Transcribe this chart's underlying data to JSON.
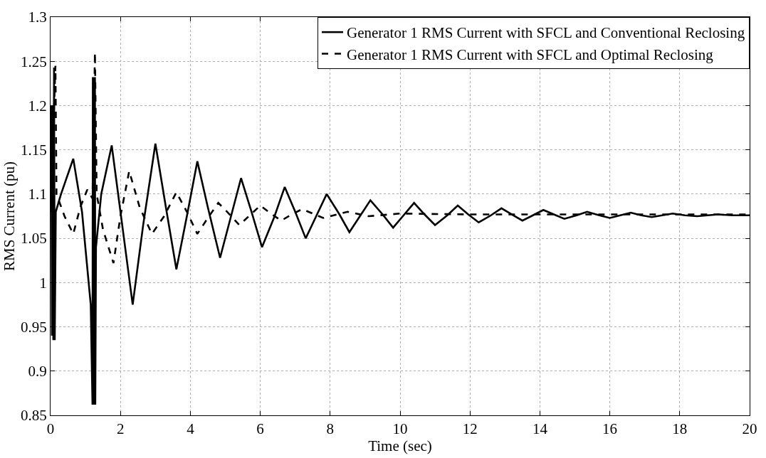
{
  "chart_data": {
    "type": "line",
    "xlabel": "Time (sec)",
    "ylabel": "RMS Current (pu)",
    "xlim": [
      0,
      20
    ],
    "ylim": [
      0.85,
      1.3
    ],
    "xticks": [
      0,
      2,
      4,
      6,
      8,
      10,
      12,
      14,
      16,
      18,
      20
    ],
    "yticks": [
      0.85,
      0.9,
      0.95,
      1,
      1.05,
      1.1,
      1.15,
      1.2,
      1.25,
      1.3
    ],
    "grid": true,
    "legend": "top right",
    "marker": "none",
    "series": [
      {
        "name": "Generator 1 RMS Current with SFCL and Conventional Reclosing",
        "color": "#000000",
        "line_style": "solid",
        "x": [
          0,
          0.02,
          0.04,
          0.06,
          0.08,
          0.1,
          0.12,
          0.15,
          0.3,
          0.65,
          0.9,
          1.15,
          1.2,
          1.21,
          1.22,
          1.23,
          1.24,
          1.25,
          1.26,
          1.27,
          1.28,
          1.3,
          1.45,
          1.75,
          2.05,
          2.35,
          2.65,
          3.0,
          3.3,
          3.6,
          3.9,
          4.2,
          4.5,
          4.85,
          5.15,
          5.45,
          5.75,
          6.05,
          6.4,
          6.7,
          7.0,
          7.3,
          7.6,
          7.9,
          8.25,
          8.55,
          8.85,
          9.15,
          9.5,
          9.8,
          10.1,
          10.4,
          10.7,
          11.0,
          11.35,
          11.65,
          11.95,
          12.25,
          12.6,
          12.9,
          13.2,
          13.5,
          13.8,
          14.1,
          14.4,
          14.7,
          15.05,
          15.35,
          15.7,
          16.0,
          16.3,
          16.6,
          16.9,
          17.2,
          17.5,
          17.8,
          18.15,
          18.5,
          18.8,
          19.1,
          19.5,
          20
        ],
        "values": [
          1.08,
          1.2,
          0.94,
          1.2,
          0.935,
          1.243,
          0.935,
          1.08,
          1.1,
          1.14,
          1.08,
          0.975,
          0.862,
          1.232,
          0.862,
          1.232,
          0.862,
          1.232,
          0.862,
          1.232,
          0.862,
          1.04,
          1.1,
          1.155,
          1.065,
          0.975,
          1.065,
          1.157,
          1.085,
          1.015,
          1.075,
          1.137,
          1.085,
          1.028,
          1.073,
          1.118,
          1.08,
          1.04,
          1.074,
          1.108,
          1.08,
          1.05,
          1.075,
          1.1,
          1.078,
          1.057,
          1.075,
          1.093,
          1.077,
          1.062,
          1.076,
          1.09,
          1.077,
          1.065,
          1.076,
          1.087,
          1.077,
          1.068,
          1.076,
          1.084,
          1.077,
          1.07,
          1.076,
          1.082,
          1.077,
          1.072,
          1.076,
          1.08,
          1.076,
          1.073,
          1.076,
          1.079,
          1.076,
          1.074,
          1.076,
          1.078,
          1.076,
          1.075,
          1.076,
          1.077,
          1.076,
          1.076
        ]
      },
      {
        "name": "Generator 1 RMS Current with SFCL and Optimal Reclosing",
        "color": "#000000",
        "line_style": "dashed",
        "x": [
          0,
          0.14,
          0.17,
          0.4,
          0.65,
          0.85,
          1.05,
          1.2,
          1.27,
          1.32,
          1.5,
          1.8,
          2.0,
          2.25,
          2.55,
          2.9,
          3.25,
          3.6,
          3.9,
          4.2,
          4.5,
          4.8,
          5.1,
          5.4,
          5.7,
          6.0,
          6.3,
          6.6,
          6.9,
          7.2,
          7.5,
          7.8,
          8.5,
          9.1,
          10,
          12,
          14,
          16,
          18,
          20
        ],
        "values": [
          1.08,
          1.245,
          1.1,
          1.075,
          1.055,
          1.085,
          1.105,
          1.095,
          1.26,
          1.1,
          1.06,
          1.022,
          1.075,
          1.126,
          1.085,
          1.055,
          1.075,
          1.102,
          1.08,
          1.055,
          1.073,
          1.09,
          1.078,
          1.065,
          1.076,
          1.087,
          1.078,
          1.07,
          1.077,
          1.083,
          1.078,
          1.073,
          1.08,
          1.075,
          1.078,
          1.077,
          1.077,
          1.077,
          1.077,
          1.077
        ]
      }
    ]
  }
}
